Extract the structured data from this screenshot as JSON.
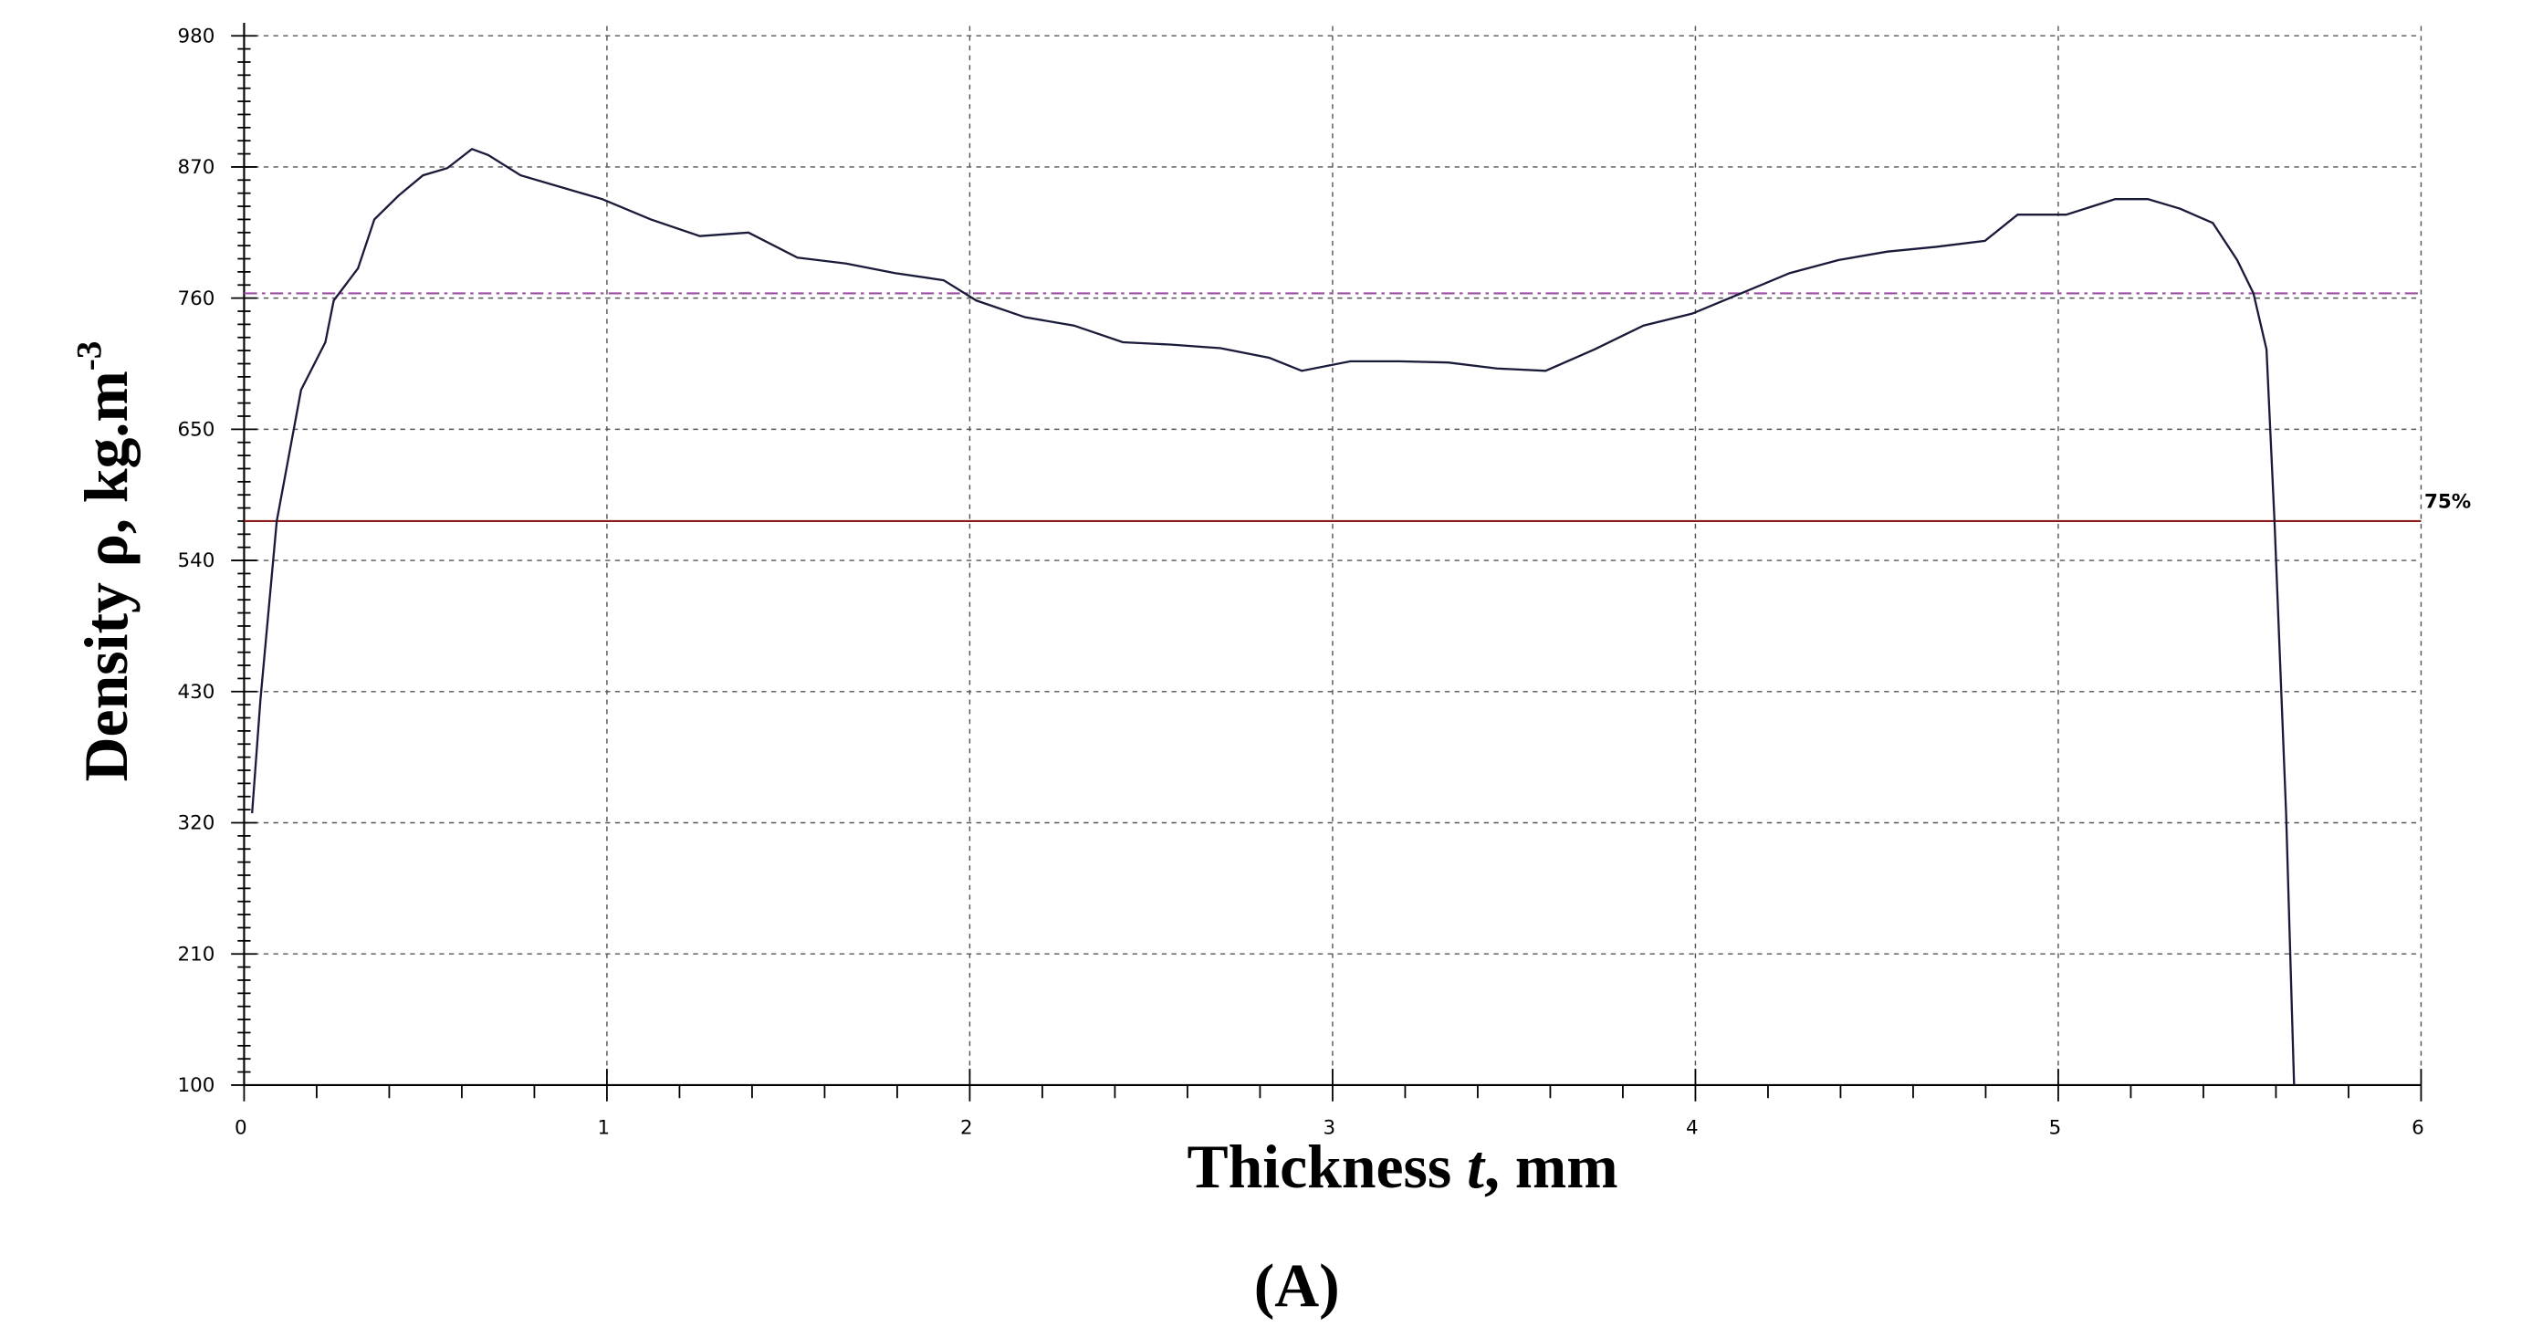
{
  "chart_data": {
    "type": "line",
    "xlabel": [
      "Thickness ",
      "t",
      ", mm"
    ],
    "ylabel": "Density ρ, kg.m",
    "ylabel_superscript": "-3",
    "caption": "(A)",
    "xlim": [
      0,
      6
    ],
    "xticks": [
      0,
      1,
      2,
      3,
      4,
      5,
      6
    ],
    "ylim": [
      100,
      980
    ],
    "yticks": [
      100,
      210,
      320,
      430,
      540,
      650,
      760,
      870,
      980
    ],
    "x_minor_per_major": 5,
    "y_minor_per_major": 10,
    "grid": true,
    "series": [
      {
        "color": "#1a1a3a",
        "x": [
          0.022,
          0.045,
          0.09,
          0.157,
          0.224,
          0.247,
          0.314,
          0.359,
          0.426,
          0.493,
          0.56,
          0.628,
          0.673,
          0.762,
          0.874,
          0.987,
          1.121,
          1.256,
          1.39,
          1.525,
          1.659,
          1.794,
          1.928,
          2.018,
          2.152,
          2.287,
          2.422,
          2.556,
          2.691,
          2.825,
          2.915,
          3.049,
          3.184,
          3.318,
          3.453,
          3.587,
          3.722,
          3.857,
          3.991,
          4.126,
          4.26,
          4.395,
          4.529,
          4.664,
          4.798,
          4.888,
          5.022,
          5.157,
          5.247,
          5.336,
          5.426,
          5.493,
          5.538,
          5.574,
          5.596,
          5.628,
          5.65
        ],
        "values": [
          328,
          423,
          573,
          683,
          723,
          758,
          785,
          826,
          846,
          863,
          869,
          885,
          880,
          863,
          853,
          843,
          826,
          812,
          815,
          794,
          789,
          781,
          775,
          758,
          744,
          737,
          723,
          721,
          718,
          710,
          699,
          707,
          707,
          706,
          701,
          699,
          717,
          737,
          747,
          764,
          781,
          792,
          799,
          803,
          808,
          830,
          830,
          843,
          843,
          835,
          823,
          792,
          764,
          717,
          573,
          328,
          100
        ]
      }
    ],
    "reference_lines": [
      {
        "value": 764,
        "color": "#9b4fa0",
        "style": "dashdot"
      },
      {
        "value": 573,
        "color": "#8b1a1a",
        "style": "solid",
        "label": "75%"
      }
    ]
  }
}
